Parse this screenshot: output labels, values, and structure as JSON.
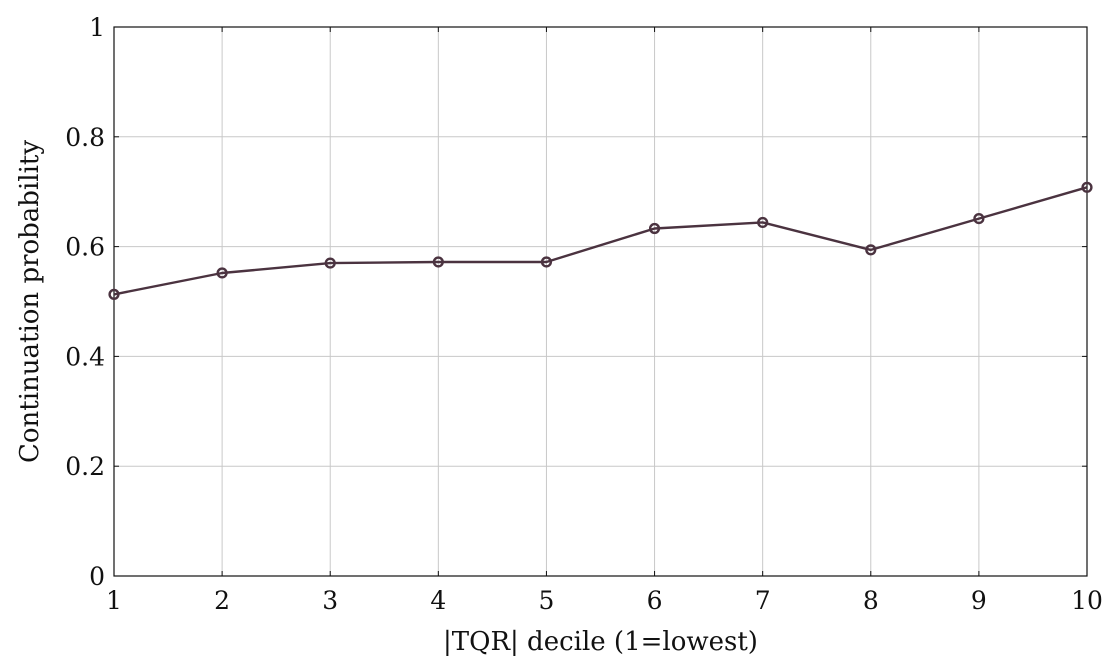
{
  "chart_data": {
    "type": "line",
    "title": "",
    "xlabel": "|TQR| decile (1=lowest)",
    "ylabel": "Continuation probability",
    "x": [
      1,
      2,
      3,
      4,
      5,
      6,
      7,
      8,
      9,
      10
    ],
    "series": [
      {
        "values": [
          0.513,
          0.552,
          0.57,
          0.572,
          0.572,
          0.633,
          0.644,
          0.594,
          0.651,
          0.708
        ],
        "color": "#4b3340",
        "marker": "circle-open"
      }
    ],
    "xlim": [
      1,
      10
    ],
    "ylim": [
      0,
      1
    ],
    "xticks": [
      1,
      2,
      3,
      4,
      5,
      6,
      7,
      8,
      9,
      10
    ],
    "xtick_labels": [
      "1",
      "2",
      "3",
      "4",
      "5",
      "6",
      "7",
      "8",
      "9",
      "10"
    ],
    "yticks": [
      0,
      0.2,
      0.4,
      0.6,
      0.8,
      1
    ],
    "ytick_labels": [
      "0",
      "0.2",
      "0.4",
      "0.6",
      "0.8",
      "1"
    ],
    "grid": true,
    "legend": "none"
  }
}
